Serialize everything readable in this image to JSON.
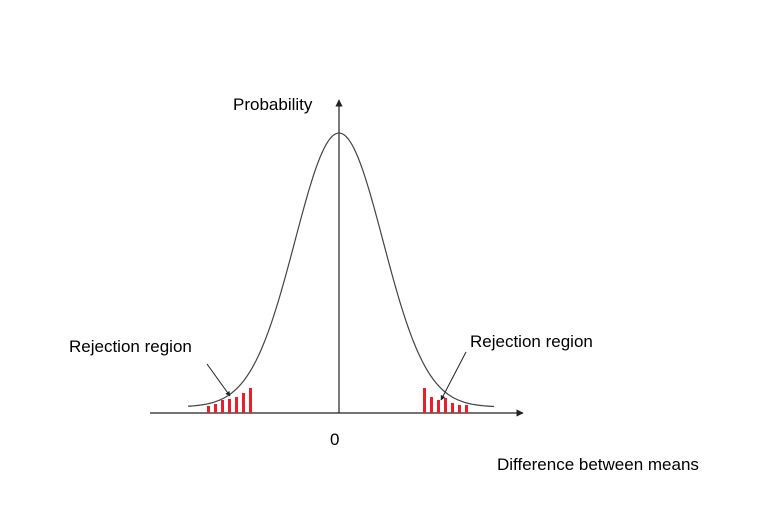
{
  "diagram": {
    "y_axis_label": "Probability",
    "x_axis_label": "Difference between means",
    "origin_label": "0",
    "rejection_label_left": "Rejection region",
    "rejection_label_right": "Rejection region",
    "colors": {
      "curve": "#444444",
      "axes": "#222222",
      "rejection_bars": "#e8202a",
      "background": "#ffffff"
    }
  }
}
